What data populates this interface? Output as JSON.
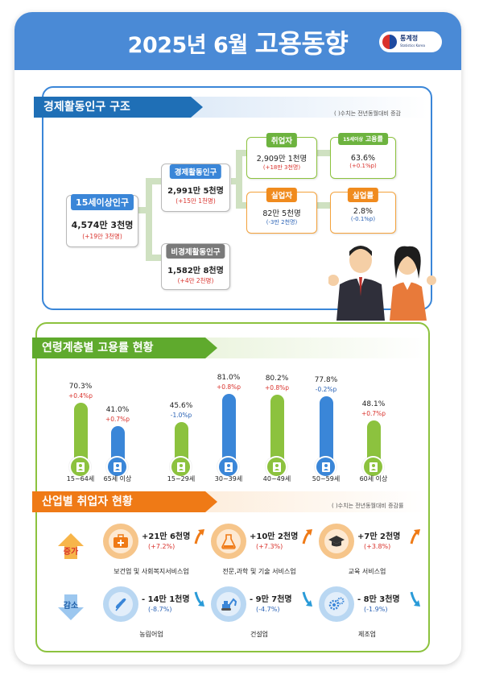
{
  "header": {
    "title_year": "2025년 6월",
    "title_main": "고용동향",
    "logo_name": "통계정",
    "logo_sub": "Statistics Korea"
  },
  "section1": {
    "title": "경제활동인구 구조",
    "note": "( )수치는 전년동월대비 증감",
    "pop15": {
      "label": "15세이상인구",
      "value": "4,574만 3천명",
      "change": "(+19만 3천명)"
    },
    "econ_active": {
      "label": "경제활동인구",
      "value": "2,991만 5천명",
      "change": "(+15만 1천명)"
    },
    "non_active": {
      "label": "비경제활동인구",
      "value": "1,582만 8천명",
      "change": "(+4만 2천명)"
    },
    "employed": {
      "label": "취업자",
      "value": "2,909만 1천명",
      "change": "(+18만 3천명)"
    },
    "unemployed": {
      "label": "실업자",
      "value": "82만 5천명",
      "change": "(-3만 2천명)"
    },
    "emp_rate": {
      "label_prefix": "15세이상",
      "label": "고용률",
      "value": "63.6%",
      "change": "(+0.1%p)"
    },
    "unemp_rate": {
      "label": "실업률",
      "value": "2.8%",
      "change": "(-0.1%p)"
    }
  },
  "section2": {
    "title": "연령계층별 고용률 현황",
    "bars": [
      {
        "age": "15~64세",
        "pct": "70.3%",
        "change": "+0.4%p",
        "value": 70.3,
        "color": "#8cc23e",
        "dir": "up"
      },
      {
        "age": "65세 이상",
        "pct": "41.0%",
        "change": "+0.7%p",
        "value": 41.0,
        "color": "#3a86d8",
        "dir": "up"
      },
      {
        "age": "15~29세",
        "pct": "45.6%",
        "change": "-1.0%p",
        "value": 45.6,
        "color": "#8cc23e",
        "dir": "down"
      },
      {
        "age": "30~39세",
        "pct": "81.0%",
        "change": "+0.8%p",
        "value": 81.0,
        "color": "#3a86d8",
        "dir": "up"
      },
      {
        "age": "40~49세",
        "pct": "80.2%",
        "change": "+0.8%p",
        "value": 80.2,
        "color": "#8cc23e",
        "dir": "up"
      },
      {
        "age": "50~59세",
        "pct": "77.8%",
        "change": "-0.2%p",
        "value": 77.8,
        "color": "#3a86d8",
        "dir": "down"
      },
      {
        "age": "60세 이상",
        "pct": "48.1%",
        "change": "+0.7%p",
        "value": 48.1,
        "color": "#8cc23e",
        "dir": "up"
      }
    ]
  },
  "section3": {
    "title": "산업별 취업자 현황",
    "note": "( )수치는 전년동월대비 증감률",
    "increase_label": "증가",
    "decrease_label": "감소",
    "increase": [
      {
        "name": "보건업 및 사회복지서비스업",
        "count": "+21만 6천명",
        "pct": "(+7.2%)",
        "icon": "medical-kit-icon"
      },
      {
        "name": "전문,과학 및 기술 서비스업",
        "count": "+10만 2천명",
        "pct": "(+7.3%)",
        "icon": "flask-icon"
      },
      {
        "name": "교육 서비스업",
        "count": "+7만 2천명",
        "pct": "(+3.8%)",
        "icon": "graduation-cap-icon"
      }
    ],
    "decrease": [
      {
        "name": "농림어업",
        "count": "- 14만 1천명",
        "pct": "(-8.7%)",
        "icon": "wheat-icon"
      },
      {
        "name": "건설업",
        "count": "- 9만 7천명",
        "pct": "(-4.7%)",
        "icon": "excavator-icon"
      },
      {
        "name": "제조업",
        "count": "- 8만 3천명",
        "pct": "(-1.9%)",
        "icon": "gears-icon"
      }
    ]
  }
}
